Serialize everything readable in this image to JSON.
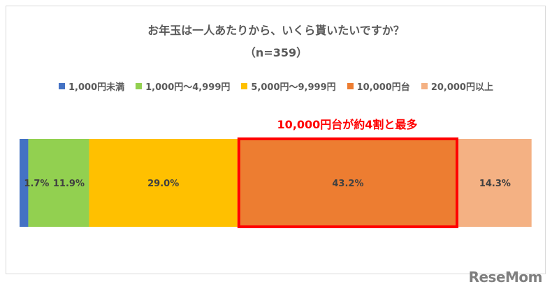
{
  "title": "お年玉は一人あたりから、いくら貰いたいですか？",
  "subtitle": "（n=359）",
  "annotation": "10,000円台が約4割と最多",
  "logo": "ReseMom",
  "colors": {
    "highlight_box": "#ff0000"
  },
  "chart_data": {
    "type": "bar",
    "orientation": "horizontal-stacked-100",
    "title": "お年玉は一人あたりから、いくら貰いたいですか？",
    "subtitle": "（n=359）",
    "categories": [
      "1,000円未満",
      "1,000円～4,999円",
      "5,000円～9,999円",
      "10,000円台",
      "20,000円以上"
    ],
    "values": [
      1.7,
      11.9,
      29.0,
      43.2,
      14.3
    ],
    "labels": [
      "1.7%",
      "11.9%",
      "29.0%",
      "43.2%",
      "14.3%"
    ],
    "colors": [
      "#4472c4",
      "#92d050",
      "#ffc000",
      "#ed7d31",
      "#f4b183"
    ],
    "legend_position": "top",
    "highlighted_category": "10,000円台",
    "xlim": [
      0,
      100
    ]
  }
}
